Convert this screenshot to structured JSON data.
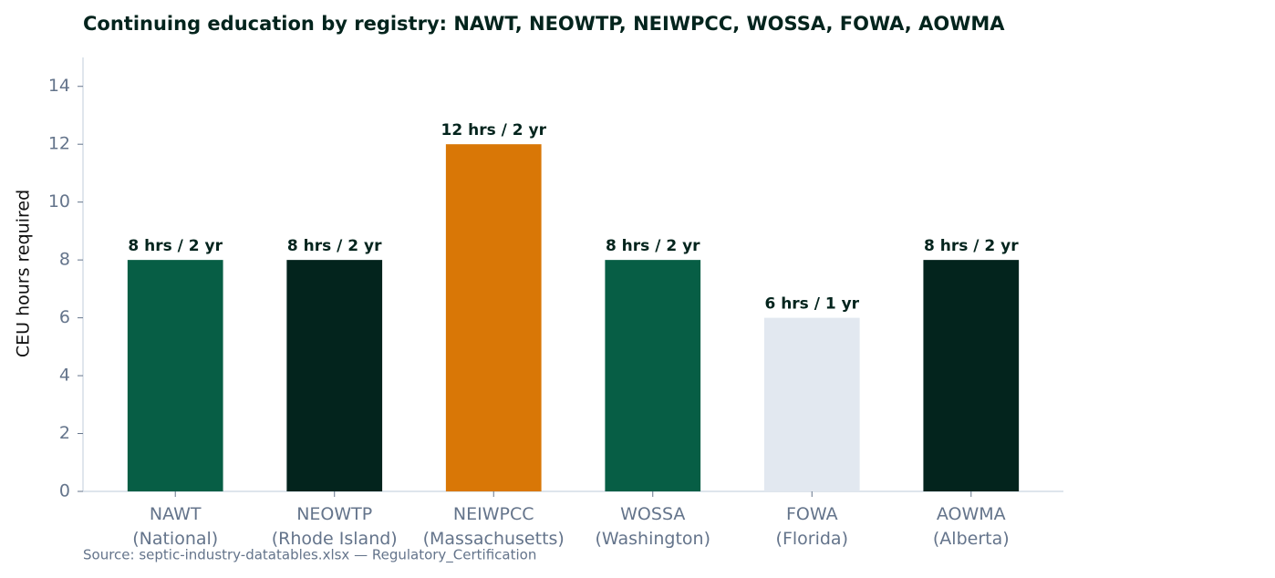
{
  "chart_data": {
    "type": "bar",
    "title": "Continuing education by registry: NAWT, NEOWTP, NEIWPCC, WOSSA, FOWA, AOWMA",
    "y_label": "CEU hours required",
    "source": "Source: septic-industry-datatables.xlsx — Regulatory_Certification",
    "categories": [
      "NAWT\n(National)",
      "NEOWTP\n(Rhode Island)",
      "NEIWPCC\n(Massachusetts)",
      "WOSSA\n(Washington)",
      "FOWA\n(Florida)",
      "AOWMA\n(Alberta)"
    ],
    "values": [
      8,
      8,
      12,
      8,
      6,
      8
    ],
    "value_labels": [
      "8 hrs / 2 yr",
      "8 hrs / 2 yr",
      "12 hrs / 2 yr",
      "8 hrs / 2 yr",
      "6 hrs / 1 yr",
      "8 hrs / 2 yr"
    ],
    "colors": [
      "#075e45",
      "#03241d",
      "#d97706",
      "#075e45",
      "#e2e8f0",
      "#03241d"
    ],
    "ylim": [
      0,
      15
    ],
    "yticks": [
      0,
      2,
      4,
      6,
      8,
      10,
      12,
      14
    ],
    "grid": false
  }
}
